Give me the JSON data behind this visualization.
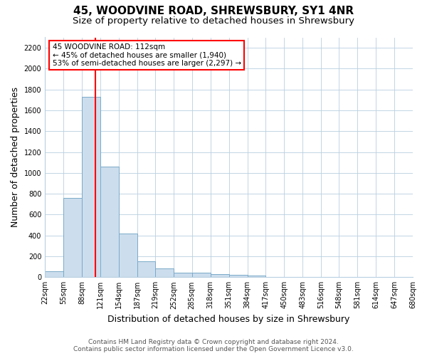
{
  "title1": "45, WOODVINE ROAD, SHREWSBURY, SY1 4NR",
  "title2": "Size of property relative to detached houses in Shrewsbury",
  "xlabel": "Distribution of detached houses by size in Shrewsbury",
  "ylabel": "Number of detached properties",
  "bin_edges": [
    22,
    55,
    88,
    121,
    154,
    187,
    219,
    252,
    285,
    318,
    351,
    384,
    417,
    450,
    483,
    516,
    548,
    581,
    614,
    647,
    680
  ],
  "bar_heights": [
    60,
    760,
    1730,
    1060,
    420,
    155,
    85,
    45,
    45,
    30,
    20,
    15,
    0,
    0,
    0,
    0,
    0,
    0,
    0,
    0
  ],
  "bar_color": "#ccdded",
  "bar_edge_color": "#7aaac8",
  "red_line_x": 112,
  "annotation_text_line1": "45 WOODVINE ROAD: 112sqm",
  "annotation_text_line2": "← 45% of detached houses are smaller (1,940)",
  "annotation_text_line3": "53% of semi-detached houses are larger (2,297) →",
  "ylim": [
    0,
    2300
  ],
  "yticks": [
    0,
    200,
    400,
    600,
    800,
    1000,
    1200,
    1400,
    1600,
    1800,
    2000,
    2200
  ],
  "footer_line1": "Contains HM Land Registry data © Crown copyright and database right 2024.",
  "footer_line2": "Contains public sector information licensed under the Open Government Licence v3.0.",
  "bg_color": "#ffffff",
  "plot_bg_color": "#ffffff",
  "title_fontsize": 11,
  "subtitle_fontsize": 9.5,
  "tick_fontsize": 7,
  "label_fontsize": 9,
  "footer_fontsize": 6.5,
  "annot_fontsize": 7.5
}
